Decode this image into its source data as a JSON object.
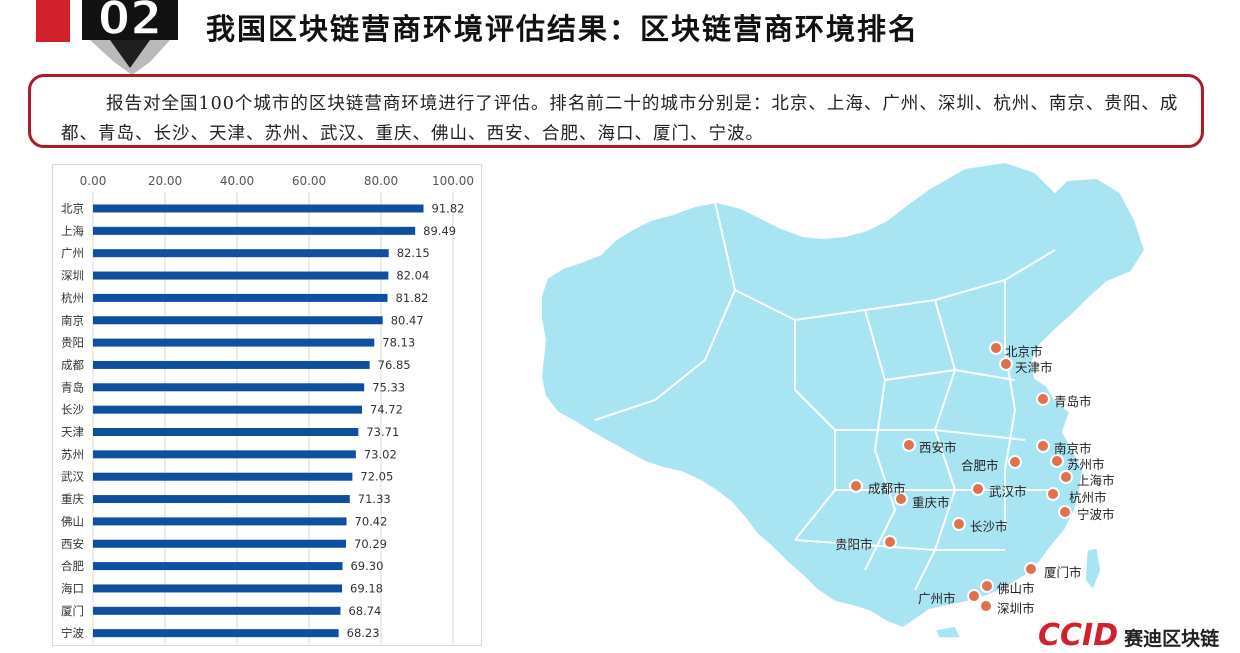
{
  "header": {
    "badge_number": "02",
    "title": "我国区块链营商环境评估结果：区块链营商环境排名"
  },
  "summary": {
    "text": "报告对全国100个城市的区块链营商环境进行了评估。排名前二十的城市分别是：北京、上海、广州、深圳、杭州、南京、贵阳、成都、青岛、长沙、天津、苏州、武汉、重庆、佛山、西安、合肥、海口、厦门、宁波。"
  },
  "colors": {
    "bar": "#0f4fa0",
    "accent_red": "#b01a22",
    "map_fill": "#a9e4f2",
    "city_dot": "#e0714e"
  },
  "chart_data": {
    "type": "bar",
    "orientation": "horizontal",
    "categories": [
      "北京",
      "上海",
      "广州",
      "深圳",
      "杭州",
      "南京",
      "贵阳",
      "成都",
      "青岛",
      "长沙",
      "天津",
      "苏州",
      "武汉",
      "重庆",
      "佛山",
      "西安",
      "合肥",
      "海口",
      "厦门",
      "宁波"
    ],
    "values": [
      91.82,
      89.49,
      82.15,
      82.04,
      81.82,
      80.47,
      78.13,
      76.85,
      75.33,
      74.72,
      73.71,
      73.02,
      72.05,
      71.33,
      70.42,
      70.29,
      69.3,
      69.18,
      68.74,
      68.23
    ],
    "value_labels": [
      "91.82",
      "89.49",
      "82.15",
      "82.04",
      "81.82",
      "80.47",
      "78.13",
      "76.85",
      "75.33",
      "74.72",
      "73.71",
      "73.02",
      "72.05",
      "71.33",
      "70.42",
      "70.29",
      "69.30",
      "69.18",
      "68.74",
      "68.23"
    ],
    "xlim": [
      0,
      100
    ],
    "x_ticks": [
      "0.00",
      "20.00",
      "40.00",
      "60.00",
      "80.00",
      "100.00"
    ],
    "x_tick_values": [
      0,
      20,
      40,
      60,
      80,
      100
    ],
    "axis_position": "top",
    "grid": true
  },
  "map": {
    "cities": [
      {
        "label": "北京市"
      },
      {
        "label": "天津市"
      },
      {
        "label": "青岛市"
      },
      {
        "label": "南京市"
      },
      {
        "label": "西安市"
      },
      {
        "label": "苏州市"
      },
      {
        "label": "合肥市"
      },
      {
        "label": "上海市"
      },
      {
        "label": "成都市"
      },
      {
        "label": "武汉市"
      },
      {
        "label": "杭州市"
      },
      {
        "label": "重庆市"
      },
      {
        "label": "宁波市"
      },
      {
        "label": "长沙市"
      },
      {
        "label": "贵阳市"
      },
      {
        "label": "厦门市"
      },
      {
        "label": "佛山市"
      },
      {
        "label": "广州市"
      },
      {
        "label": "深圳市"
      }
    ]
  },
  "logo": {
    "mark": "CCID",
    "text": "赛迪区块链"
  }
}
